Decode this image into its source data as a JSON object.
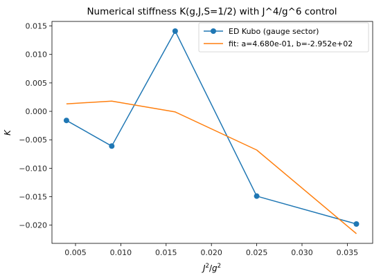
{
  "chart_data": {
    "type": "line",
    "title": "Numerical stiffness K(g,J,S=1/2) with J^4/g^6 control",
    "xlabel": "J²/g²",
    "ylabel": "K",
    "xlim": [
      0.0024,
      0.0378
    ],
    "ylim": [
      -0.0232,
      0.0158
    ],
    "xticks": [
      0.005,
      0.01,
      0.015,
      0.02,
      0.025,
      0.03,
      0.035
    ],
    "xtick_labels": [
      "0.005",
      "0.010",
      "0.015",
      "0.020",
      "0.025",
      "0.030",
      "0.035"
    ],
    "yticks": [
      0.015,
      0.01,
      0.005,
      0.0,
      -0.005,
      -0.01,
      -0.015,
      -0.02
    ],
    "ytick_labels": [
      "0.015",
      "0.010",
      "0.005",
      "0.000",
      "−0.005",
      "−0.010",
      "−0.015",
      "−0.020"
    ],
    "grid": false,
    "legend_position": "top-right",
    "series": [
      {
        "name": "ED Kubo (gauge sector)",
        "color": "#1f77b4",
        "marker": "circle",
        "x": [
          0.004,
          0.009,
          0.016,
          0.025,
          0.036
        ],
        "y": [
          -0.0016,
          -0.0061,
          0.0141,
          -0.0149,
          -0.0198
        ]
      },
      {
        "name": "fit: a=4.680e-01, b=-2.952e+02",
        "color": "#ff7f0e",
        "marker": "none",
        "x": [
          0.004,
          0.009,
          0.016,
          0.025,
          0.036
        ],
        "y": [
          0.0013,
          0.0018,
          -0.0001,
          -0.0068,
          -0.0215
        ]
      }
    ]
  }
}
